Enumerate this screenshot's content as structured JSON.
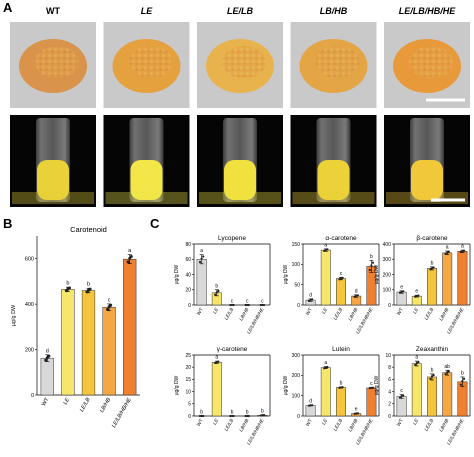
{
  "panel_a": {
    "label": "A",
    "headers": [
      "WT",
      "LE",
      "LE/LB",
      "LB/HB",
      "LE/LB/HB/HE"
    ],
    "italic": [
      false,
      true,
      true,
      true,
      true
    ],
    "powder_colors": [
      "#d9934b",
      "#e6a13f",
      "#e8b34c",
      "#e4a545",
      "#e89a3a"
    ],
    "liquid_colors": [
      "#e8d238",
      "#f2e648",
      "#f0e13f",
      "#ecd238",
      "#f0c83a"
    ]
  },
  "chart_data": [
    {
      "panel": "B",
      "type": "bar",
      "title": "Carotenoid",
      "ylabel": "µg/g DW",
      "categories": [
        "WT",
        "LE",
        "LE/LB",
        "LB/HB",
        "LE/LB/HB/HE"
      ],
      "values": [
        162,
        465,
        460,
        386,
        598
      ],
      "errors": [
        15,
        10,
        10,
        15,
        20
      ],
      "letters": [
        "d",
        "b",
        "b",
        "c",
        "a"
      ],
      "ylim": [
        0,
        700
      ],
      "yticks": [
        0,
        200,
        400,
        600
      ],
      "ytick_labels": [
        "0",
        "200",
        "400",
        "600"
      ]
    },
    {
      "panel": "C",
      "type": "bar",
      "title": "Lycopene",
      "ylabel": "µg/g DW",
      "categories": [
        "WT",
        "LE",
        "LE/LB",
        "LB/HB",
        "LE/LB/HB/HE"
      ],
      "values": [
        60,
        16,
        0,
        0,
        0
      ],
      "errors": [
        6,
        4,
        0,
        0,
        0
      ],
      "letters": [
        "a",
        "b",
        "c",
        "c",
        "c"
      ],
      "ylim": [
        0,
        80
      ],
      "yticks": [
        0,
        20,
        40,
        60,
        80
      ],
      "ytick_labels": [
        "0",
        "20",
        "40",
        "60",
        "80"
      ]
    },
    {
      "type": "bar",
      "title": "α-carotene",
      "ylabel": "µg/g DW",
      "categories": [
        "WT",
        "LE",
        "LE/LB",
        "LB/HB",
        "LE/LB/HB/HE"
      ],
      "values": [
        12,
        135,
        65,
        22,
        95
      ],
      "errors": [
        3,
        3,
        3,
        3,
        15
      ],
      "letters": [
        "d",
        "a",
        "c",
        "d",
        "b"
      ],
      "ylim": [
        0,
        150
      ],
      "yticks": [
        0,
        50,
        100,
        150
      ],
      "ytick_labels": [
        "0",
        "50",
        "100",
        "150"
      ]
    },
    {
      "type": "bar",
      "title": "β-carotene",
      "ylabel": "µg/g DW",
      "categories": [
        "WT",
        "LE",
        "LE/LB",
        "LB/HB",
        "LE/LB/HB/HE"
      ],
      "values": [
        85,
        58,
        240,
        342,
        352
      ],
      "errors": [
        8,
        6,
        10,
        12,
        8
      ],
      "letters": [
        "e",
        "e",
        "b",
        "a",
        "a"
      ],
      "ylim": [
        0,
        400
      ],
      "yticks": [
        0,
        100,
        200,
        300,
        400
      ],
      "ytick_labels": [
        "0",
        "100",
        "200",
        "300",
        "400"
      ]
    },
    {
      "type": "bar",
      "title": "γ-carotene",
      "ylabel": "µg/g DW",
      "categories": [
        "WT",
        "LE",
        "LE/LB",
        "LB/HB",
        "LE/LB/HB/HE"
      ],
      "values": [
        0,
        22,
        0,
        0,
        0.3
      ],
      "errors": [
        0,
        0.5,
        0,
        0,
        0.2
      ],
      "letters": [
        "b",
        "a",
        "b",
        "b",
        "b"
      ],
      "ylim": [
        0,
        25
      ],
      "yticks": [
        0,
        5,
        10,
        15,
        20,
        25
      ],
      "ytick_labels": [
        "0",
        "5",
        "10",
        "15",
        "20",
        "25"
      ]
    },
    {
      "type": "bar",
      "title": "Lutein",
      "ylabel": "µg/g DW",
      "categories": [
        "WT",
        "LE",
        "LE/LB",
        "LB/HB",
        "LE/LB/HB/HE"
      ],
      "values": [
        52,
        238,
        140,
        12,
        138
      ],
      "errors": [
        2,
        5,
        3,
        2,
        2
      ],
      "letters": [
        "d",
        "a",
        "b",
        "e",
        "c"
      ],
      "ylim": [
        0,
        300
      ],
      "yticks": [
        0,
        100,
        200,
        300
      ],
      "ytick_labels": [
        "0",
        "100",
        "200",
        "300"
      ]
    },
    {
      "type": "bar",
      "title": "Zeaxanthin",
      "ylabel": "µg/g DW",
      "categories": [
        "WT",
        "LE",
        "LE/LB",
        "LB/HB",
        "LE/LB/HB/HE"
      ],
      "values": [
        3.2,
        8.6,
        6.4,
        7.1,
        5.6
      ],
      "errors": [
        0.3,
        0.4,
        0.5,
        0.4,
        0.8
      ],
      "letters": [
        "c",
        "a",
        "b",
        "ab",
        "b"
      ],
      "ylim": [
        0,
        10
      ],
      "yticks": [
        0,
        2,
        4,
        6,
        8,
        10
      ],
      "ytick_labels": [
        "0",
        "2",
        "4",
        "6",
        "8",
        "10"
      ]
    }
  ],
  "panel_labels": {
    "b": "B",
    "c": "C"
  },
  "bar_colors": [
    "#d8d8d8",
    "#f7e66a",
    "#f6c53e",
    "#f4a743",
    "#f07f2f"
  ],
  "bar_edge_color": "#333333"
}
